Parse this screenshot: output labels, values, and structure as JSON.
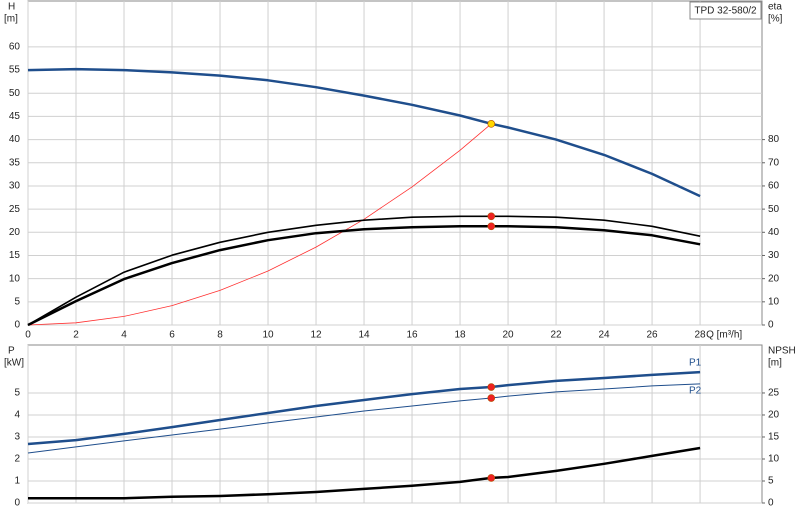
{
  "chart_data": [
    {
      "type": "line",
      "title": "TPD 32-580/2",
      "xlabel": "Q [m³/h]",
      "ylabel": "H",
      "yunit": "[m]",
      "y2label": "eta",
      "y2unit": "[%]",
      "xlim": [
        0,
        30.58
      ],
      "ylim": [
        0,
        69.9
      ],
      "y2lim": [
        0,
        139.8
      ],
      "xticks": [
        0,
        2,
        4,
        6,
        8,
        10,
        12,
        14,
        16,
        18,
        20,
        22,
        24,
        26,
        28
      ],
      "yticks": [
        0,
        5,
        10,
        15,
        20,
        25,
        30,
        35,
        40,
        45,
        50,
        55,
        60
      ],
      "y2ticks": [
        0,
        10,
        20,
        30,
        40,
        50,
        60,
        70,
        80
      ],
      "grid": true,
      "series": [
        {
          "color": "#1f4e8c",
          "width": 2.5,
          "axis": "y",
          "x": [
            0,
            2,
            4,
            6,
            8,
            10,
            12,
            14,
            16,
            18,
            19.3,
            20,
            22,
            24,
            26,
            28
          ],
          "values": [
            55.0,
            55.2,
            55.0,
            54.5,
            53.8,
            52.8,
            51.3,
            49.5,
            47.5,
            45.2,
            43.4,
            42.6,
            40.0,
            36.7,
            32.6,
            27.8
          ]
        },
        {
          "color": "#ff3030",
          "width": 0.8,
          "axis": "y",
          "x": [
            0,
            2,
            4,
            6,
            8,
            10,
            12,
            14,
            16,
            18,
            19.3
          ],
          "values": [
            0,
            0.47,
            1.86,
            4.19,
            7.46,
            11.65,
            16.8,
            22.8,
            29.8,
            37.7,
            43.4
          ]
        },
        {
          "color": "#000000",
          "width": 1.6,
          "axis": "y2",
          "x": [
            0,
            2,
            4,
            6,
            8,
            10,
            12,
            14,
            16,
            18,
            20,
            22,
            24,
            26,
            28
          ],
          "values": [
            0,
            12.0,
            22.8,
            30.1,
            35.7,
            40.0,
            43.0,
            45.2,
            46.5,
            46.9,
            46.9,
            46.5,
            45.2,
            42.6,
            38.3
          ]
        },
        {
          "color": "#000000",
          "width": 2.5,
          "axis": "y2",
          "x": [
            0,
            2,
            4,
            6,
            8,
            10,
            12,
            14,
            16,
            18,
            20,
            22,
            24,
            26,
            28
          ],
          "values": [
            0,
            10.3,
            19.8,
            26.7,
            32.3,
            36.6,
            39.6,
            41.3,
            42.2,
            42.6,
            42.6,
            42.2,
            40.9,
            38.7,
            34.8
          ]
        }
      ],
      "points": [
        {
          "x": 19.3,
          "y": 43.4,
          "axis": "y",
          "color": "#ffd700"
        },
        {
          "x": 19.3,
          "y": 46.9,
          "axis": "y2",
          "color": "#ee2222"
        },
        {
          "x": 19.3,
          "y": 42.6,
          "axis": "y2",
          "color": "#ee2222"
        }
      ]
    },
    {
      "type": "line",
      "ylabel": "P",
      "yunit": "[kW]",
      "y2label": "NPSH",
      "y2unit": "[m]",
      "xlim": [
        0,
        30.58
      ],
      "ylim": [
        0,
        7.18
      ],
      "y2lim": [
        0,
        35.9
      ],
      "xticks": [
        0,
        2,
        4,
        6,
        8,
        10,
        12,
        14,
        16,
        18,
        20,
        22,
        24,
        26,
        28
      ],
      "show_xtick_labels": false,
      "yticks": [
        0,
        1,
        2,
        3,
        4,
        5
      ],
      "y2ticks": [
        0,
        5,
        10,
        15,
        20,
        25
      ],
      "grid": true,
      "series": [
        {
          "name": "P1",
          "label_position": "above",
          "color": "#1f4e8c",
          "width": 2.5,
          "axis": "y",
          "x": [
            0,
            2,
            4,
            6,
            8,
            10,
            12,
            14,
            16,
            18,
            19.3,
            20,
            22,
            24,
            26,
            28
          ],
          "values": [
            2.68,
            2.86,
            3.14,
            3.45,
            3.77,
            4.09,
            4.41,
            4.68,
            4.95,
            5.18,
            5.27,
            5.36,
            5.55,
            5.68,
            5.82,
            5.95
          ]
        },
        {
          "name": "P2",
          "label_position": "below",
          "color": "#1f4e8c",
          "width": 1,
          "axis": "y",
          "x": [
            0,
            2,
            4,
            6,
            8,
            10,
            12,
            14,
            16,
            18,
            19.3,
            20,
            22,
            24,
            26,
            28
          ],
          "values": [
            2.27,
            2.55,
            2.82,
            3.09,
            3.36,
            3.64,
            3.91,
            4.18,
            4.41,
            4.64,
            4.77,
            4.86,
            5.05,
            5.18,
            5.32,
            5.41
          ]
        },
        {
          "color": "#000000",
          "width": 2.5,
          "axis": "y2",
          "x": [
            0,
            2,
            4,
            6,
            8,
            10,
            12,
            14,
            16,
            18,
            19.3,
            20,
            22,
            24,
            26,
            28
          ],
          "values": [
            1.1,
            1.1,
            1.1,
            1.4,
            1.6,
            2.0,
            2.5,
            3.2,
            3.9,
            4.8,
            5.7,
            5.9,
            7.3,
            8.9,
            10.7,
            12.5
          ]
        }
      ],
      "points": [
        {
          "x": 19.3,
          "y": 5.27,
          "axis": "y",
          "color": "#ee2222"
        },
        {
          "x": 19.3,
          "y": 4.77,
          "axis": "y",
          "color": "#ee2222"
        },
        {
          "x": 19.3,
          "y": 5.7,
          "axis": "y2",
          "color": "#ee2222"
        }
      ]
    }
  ]
}
